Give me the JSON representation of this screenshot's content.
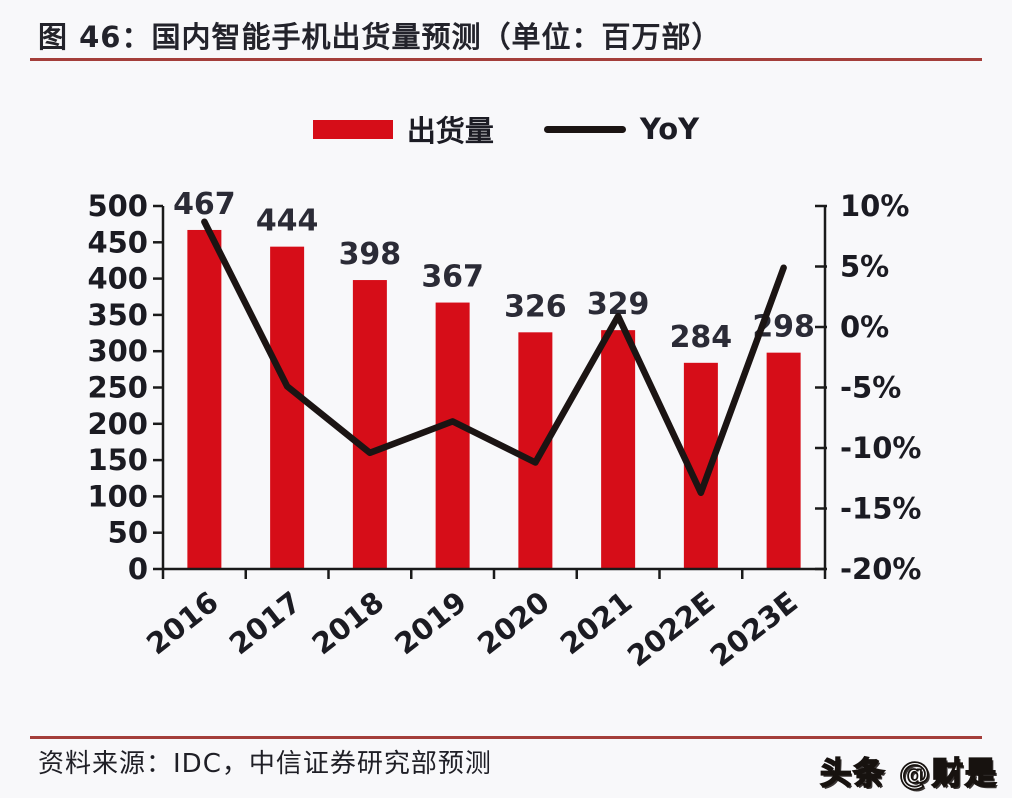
{
  "title": "图 46：国内智能手机出货量预测（单位：百万部）",
  "legend": {
    "bars": "出货量",
    "line": "YoY"
  },
  "source": "资料来源：IDC，中信证券研究部预测",
  "watermark": "头条 @财是",
  "colors": {
    "bar": "#d60d18",
    "line": "#1b1413",
    "rule": "#a43e3a",
    "axis": "#1a1a1a",
    "value_label": "#2b2b36",
    "tick_label": "#1b1b22",
    "background": "#f8f8fa"
  },
  "chart_data": {
    "type": "bar",
    "title": "国内智能手机出货量预测",
    "unit": "百万部",
    "categories": [
      "2016",
      "2017",
      "2018",
      "2019",
      "2020",
      "2021",
      "2022E",
      "2023E"
    ],
    "series": [
      {
        "name": "出货量",
        "type": "bar",
        "axis": "left",
        "values": [
          467,
          444,
          398,
          367,
          326,
          329,
          284,
          298
        ]
      },
      {
        "name": "YoY",
        "type": "line",
        "axis": "right",
        "values_pct": [
          8.7,
          -4.9,
          -10.4,
          -7.8,
          -11.2,
          0.9,
          -13.7,
          4.9
        ]
      }
    ],
    "left_axis": {
      "min": 0,
      "max": 500,
      "step": 50,
      "ticks": [
        "500",
        "450",
        "400",
        "350",
        "300",
        "250",
        "200",
        "150",
        "100",
        "50",
        "0"
      ]
    },
    "right_axis": {
      "min": -20,
      "max": 10,
      "step": 5,
      "ticks": [
        "10%",
        "5%",
        "0%",
        "-5%",
        "-10%",
        "-15%",
        "-20%"
      ]
    },
    "grid": false,
    "legend_position": "top-center",
    "data_labels": "outside-end"
  }
}
